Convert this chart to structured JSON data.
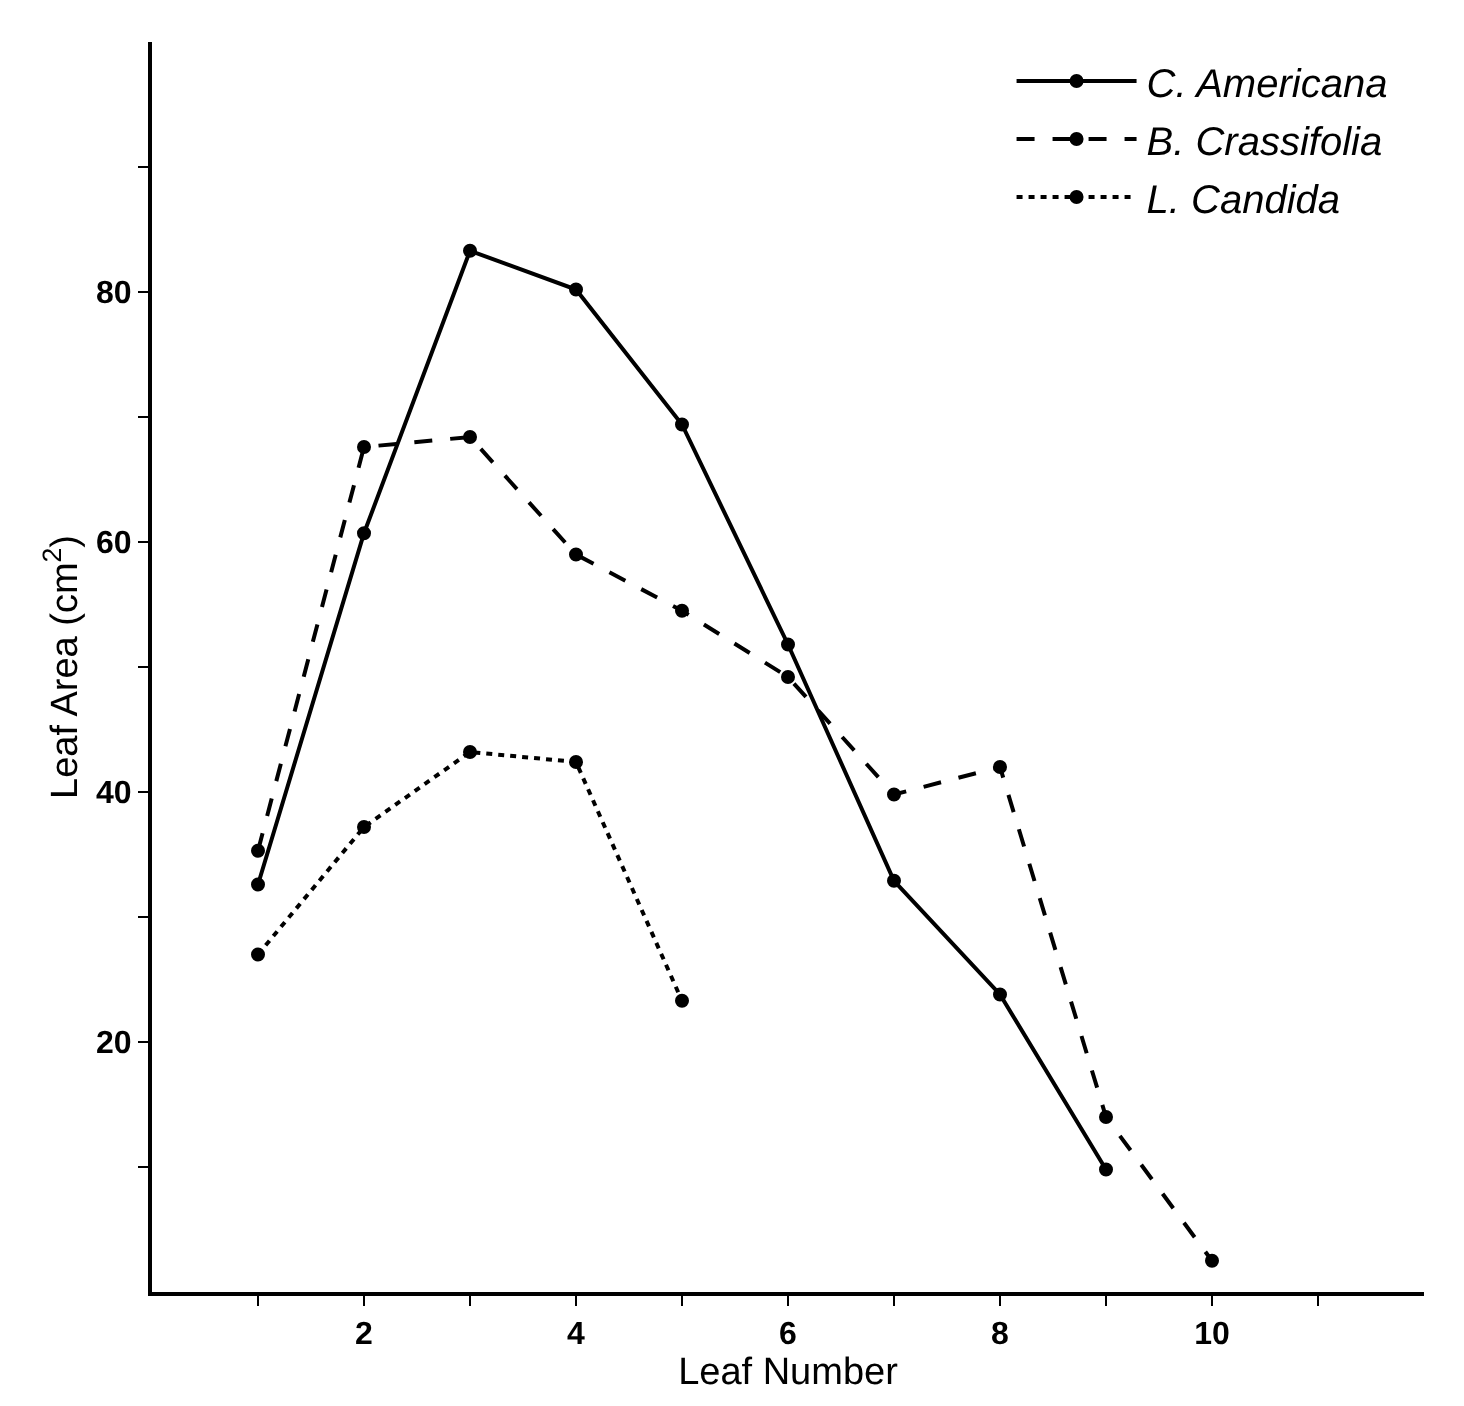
{
  "chart_data": {
    "type": "line",
    "xlabel": "Leaf Number",
    "ylabel": "Leaf Area (cm$^{2}$)",
    "x": [
      1,
      2,
      3,
      4,
      5,
      6,
      7,
      8,
      9,
      10
    ],
    "series": [
      {
        "name": "C. Americana",
        "color": "#000000",
        "line_style": "solid",
        "values": [
          32.6,
          60.7,
          83.3,
          80.2,
          69.4,
          51.8,
          32.9,
          23.8,
          9.8,
          null
        ]
      },
      {
        "name": "B. Crassifolia",
        "color": "#000000",
        "line_style": "dashed",
        "values": [
          35.3,
          67.6,
          68.4,
          59.0,
          54.5,
          49.2,
          39.8,
          42.0,
          14.0,
          2.5
        ]
      },
      {
        "name": "L. Candida",
        "color": "#000000",
        "line_style": "dotted",
        "values": [
          27.0,
          37.2,
          43.2,
          42.4,
          23.3,
          null,
          null,
          null,
          null,
          null
        ]
      }
    ],
    "xlim": [
      0,
      12
    ],
    "xticks": [
      {
        "value": 1,
        "label": null
      },
      2,
      {
        "value": 3,
        "label": null
      },
      4,
      {
        "value": 5,
        "label": null
      },
      6,
      {
        "value": 7,
        "label": null
      },
      8,
      {
        "value": 9,
        "label": null
      },
      10,
      {
        "value": 11,
        "label": null
      }
    ],
    "ylim": [
      0,
      100
    ],
    "yticks": [
      {
        "value": 10,
        "label": null
      },
      20,
      {
        "value": 30,
        "label": null
      },
      40,
      {
        "value": 50,
        "label": null
      },
      60,
      {
        "value": 70,
        "label": null
      },
      80,
      {
        "value": 90,
        "label": null
      }
    ],
    "marker": "circle",
    "legend": "top right"
  }
}
